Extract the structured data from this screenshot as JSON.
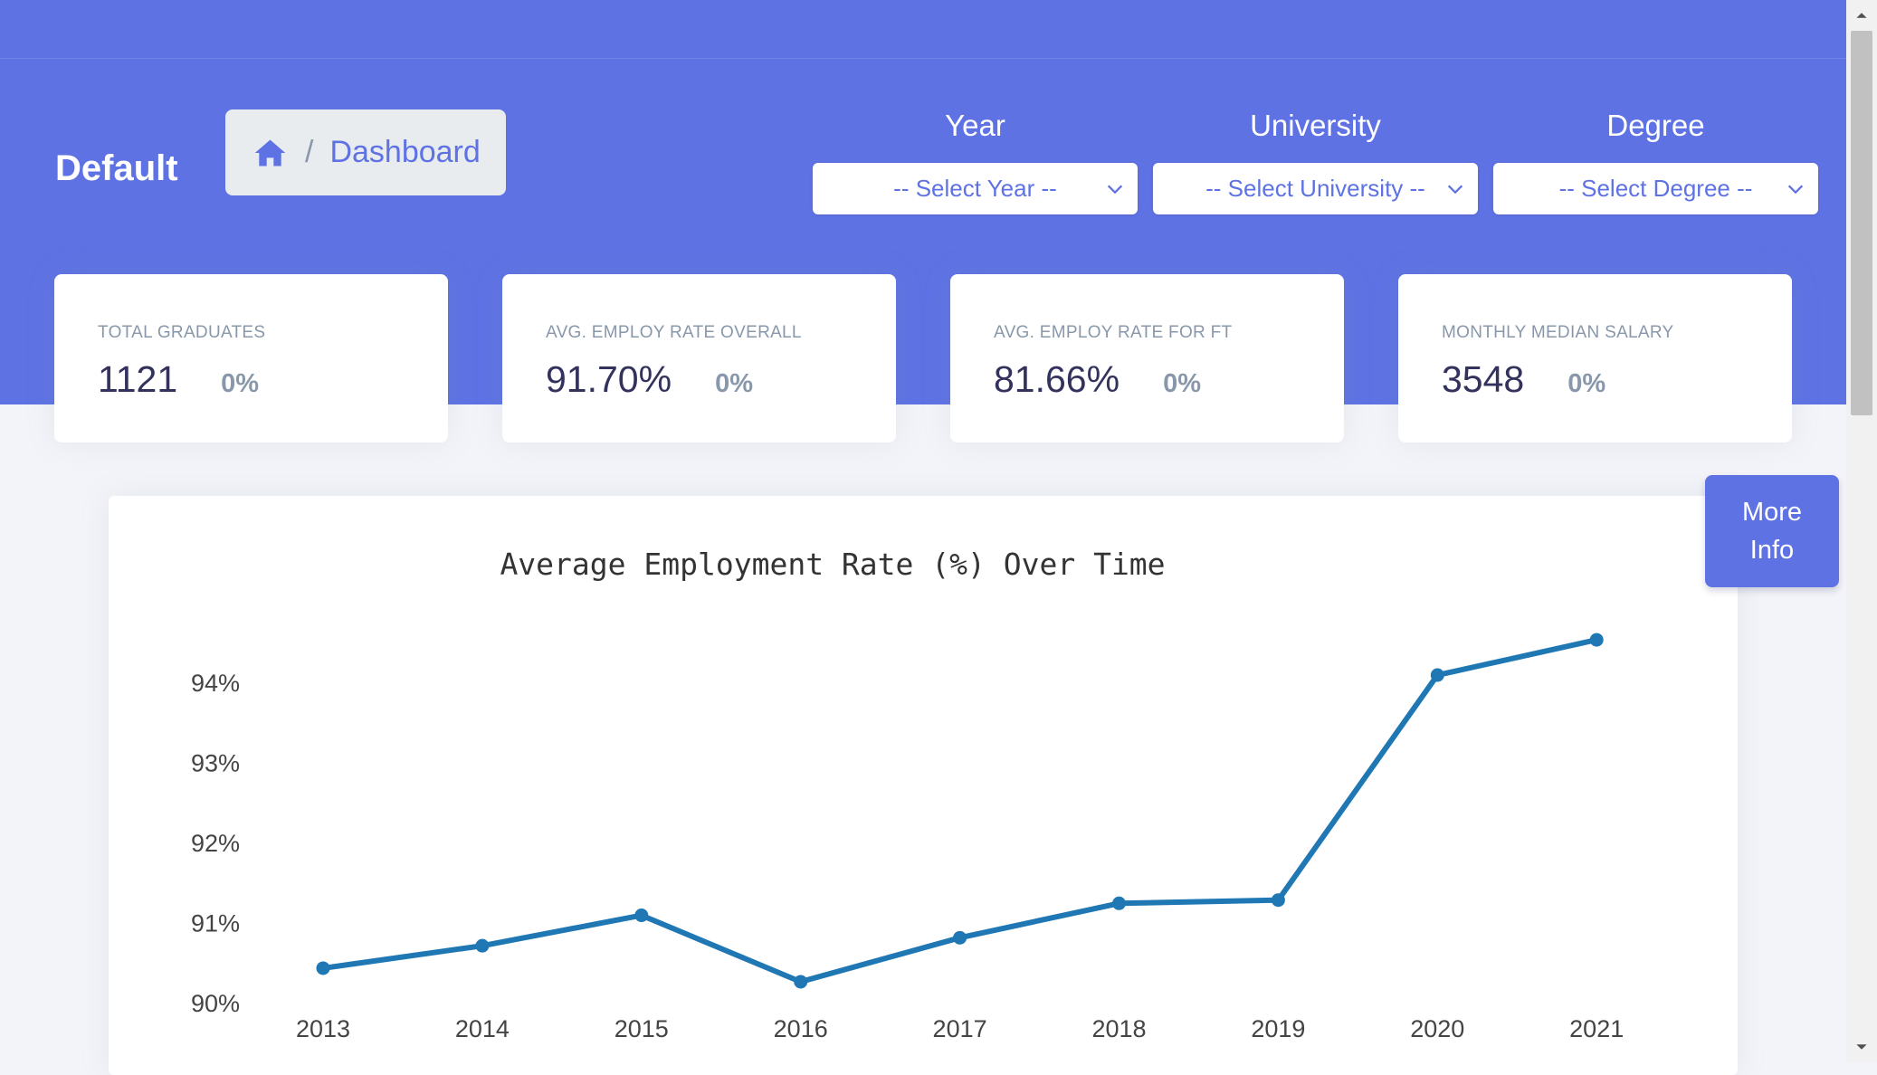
{
  "header": {
    "title": "Default",
    "breadcrumb": {
      "separator": "/",
      "current": "Dashboard"
    }
  },
  "filters": [
    {
      "label": "Year",
      "value": "-- Select Year --"
    },
    {
      "label": "University",
      "value": "-- Select University --"
    },
    {
      "label": "Degree",
      "value": "-- Select Degree --"
    }
  ],
  "stats": [
    {
      "title": "TOTAL GRADUATES",
      "value": "1121",
      "change": "0%"
    },
    {
      "title": "AVG. EMPLOY RATE OVERALL",
      "value": "91.70%",
      "change": "0%"
    },
    {
      "title": "AVG. EMPLOY RATE FOR FT",
      "value": "81.66%",
      "change": "0%"
    },
    {
      "title": "MONTHLY MEDIAN SALARY",
      "value": "3548",
      "change": "0%"
    }
  ],
  "more_info": {
    "line1": "More",
    "line2": "Info"
  },
  "colors": {
    "primary": "#5e72e4",
    "line": "#1f77b4"
  },
  "icons": [
    "home-icon",
    "chevron-down-icon"
  ],
  "chart_data": {
    "type": "line",
    "title": "Average Employment Rate (%) Over Time",
    "xlabel": "",
    "ylabel": "",
    "categories": [
      "2013",
      "2014",
      "2015",
      "2016",
      "2017",
      "2018",
      "2019",
      "2020",
      "2021"
    ],
    "values": [
      90.43,
      90.71,
      91.09,
      90.26,
      90.81,
      91.24,
      91.28,
      94.09,
      94.53
    ],
    "yticks": [
      "90%",
      "91%",
      "92%",
      "93%",
      "94%"
    ],
    "ylim": [
      89.9,
      94.9
    ],
    "grid": false
  }
}
